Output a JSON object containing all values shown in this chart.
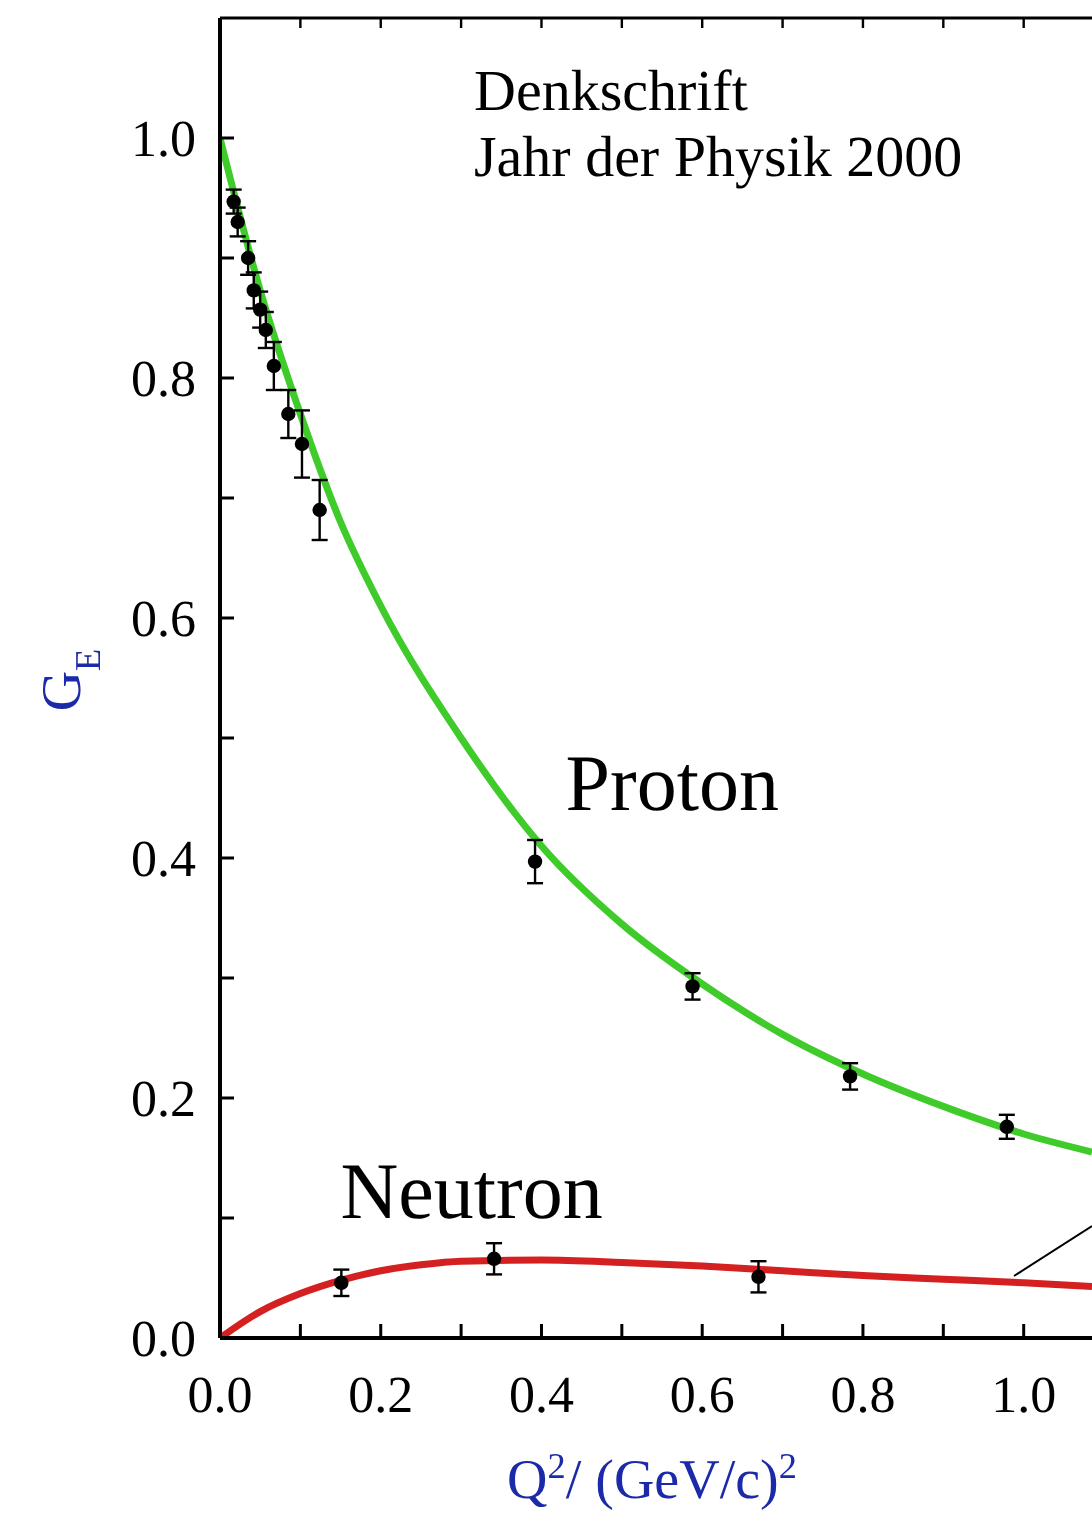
{
  "chart_data": {
    "type": "line",
    "annotations": [
      "Denkschrift",
      "Jahr der Physik 2000"
    ],
    "xlabel": "Q$^{2}$/ (GeV/c)$^{2}$",
    "ylabel": "G$_{E}$",
    "xlim": [
      0,
      1.085
    ],
    "ylim": [
      0,
      1.1
    ],
    "xticks": [
      {
        "value": 0,
        "label": "0.0"
      },
      {
        "value": 0.1,
        "label": null
      },
      {
        "value": 0.2,
        "label": "0.2"
      },
      {
        "value": 0.3,
        "label": null
      },
      {
        "value": 0.4,
        "label": "0.4"
      },
      {
        "value": 0.5,
        "label": null
      },
      {
        "value": 0.6,
        "label": "0.6"
      },
      {
        "value": 0.7,
        "label": null
      },
      {
        "value": 0.8,
        "label": "0.8"
      },
      {
        "value": 0.9,
        "label": null
      },
      {
        "value": 1.0,
        "label": "1.0"
      }
    ],
    "yticks": [
      {
        "value": 0,
        "label": "0.0"
      },
      {
        "value": 0.1,
        "label": null
      },
      {
        "value": 0.2,
        "label": "0.2"
      },
      {
        "value": 0.3,
        "label": null
      },
      {
        "value": 0.4,
        "label": "0.4"
      },
      {
        "value": 0.5,
        "label": null
      },
      {
        "value": 0.6,
        "label": "0.6"
      },
      {
        "value": 0.7,
        "label": null
      },
      {
        "value": 0.8,
        "label": "0.8"
      },
      {
        "value": 0.9,
        "label": null
      },
      {
        "value": 1.0,
        "label": "1.0"
      }
    ],
    "grid": false,
    "series": [
      {
        "name": "Proton",
        "color": "#3fcc2a",
        "x": [
          0,
          0.05,
          0.1,
          0.15,
          0.2,
          0.3,
          0.4,
          0.5,
          0.6,
          0.7,
          0.8,
          0.9,
          1.0,
          1.085
        ],
        "values": [
          1.0,
          0.873,
          0.77,
          0.68,
          0.61,
          0.5,
          0.41,
          0.345,
          0.295,
          0.253,
          0.22,
          0.193,
          0.17,
          0.155
        ]
      },
      {
        "type": "scatter",
        "color": "#000000",
        "marker": "circle",
        "x": [
          0.017,
          0.022,
          0.035,
          0.042,
          0.05,
          0.057,
          0.067,
          0.085,
          0.102,
          0.124,
          0.392,
          0.588,
          0.784,
          0.979
        ],
        "values": [
          0.947,
          0.93,
          0.9,
          0.873,
          0.857,
          0.84,
          0.81,
          0.77,
          0.745,
          0.69,
          0.397,
          0.293,
          0.218,
          0.176
        ],
        "errors": [
          0.01,
          0.012,
          0.014,
          0.015,
          0.015,
          0.015,
          0.02,
          0.02,
          0.028,
          0.025,
          0.018,
          0.011,
          0.011,
          0.01
        ]
      },
      {
        "name": "Neutron",
        "color": "#d42020",
        "x": [
          0,
          0.05,
          0.1,
          0.15,
          0.2,
          0.25,
          0.3,
          0.4,
          0.5,
          0.6,
          0.7,
          0.8,
          0.9,
          1.0,
          1.085
        ],
        "values": [
          0,
          0.022,
          0.037,
          0.048,
          0.056,
          0.061,
          0.064,
          0.065,
          0.063,
          0.06,
          0.056,
          0.052,
          0.049,
          0.046,
          0.043
        ]
      },
      {
        "type": "scatter",
        "color": "#000000",
        "marker": "circle",
        "x": [
          0.151,
          0.341,
          0.67
        ],
        "values": [
          0.046,
          0.066,
          0.051
        ],
        "errors": [
          0.011,
          0.013,
          0.013
        ]
      }
    ]
  }
}
